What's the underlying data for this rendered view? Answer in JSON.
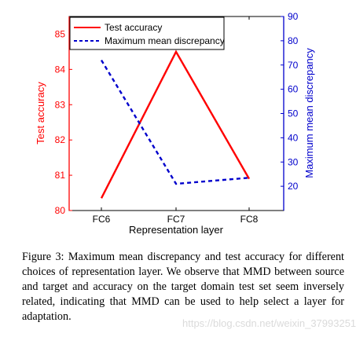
{
  "chart_data": {
    "type": "line",
    "categories": [
      "FC6",
      "FC7",
      "FC8"
    ],
    "xlabel": "Representation layer",
    "y_left": {
      "label": "Test accuracy",
      "range": [
        80,
        85.5
      ],
      "ticks": [
        80,
        81,
        82,
        83,
        84,
        85
      ],
      "color": "#ff0000"
    },
    "y_right": {
      "label": "Maximum mean discrepancy",
      "range": [
        10,
        90
      ],
      "ticks": [
        20,
        30,
        40,
        50,
        60,
        70,
        80,
        90
      ],
      "color": "#0000cc"
    },
    "series": [
      {
        "name": "Test accuracy",
        "axis": "left",
        "style": "solid",
        "color": "#ff0000",
        "values": [
          80.35,
          84.5,
          80.9
        ]
      },
      {
        "name": "Maximum mean discrepancy",
        "axis": "right",
        "style": "dashed",
        "color": "#0000cc",
        "values": [
          72,
          21,
          23.5
        ]
      }
    ],
    "legend": {
      "position": "top-left"
    },
    "grid": false
  },
  "caption": "Figure 3: Maximum mean discrepancy and test accuracy for different choices of representation layer. We observe that MMD between source and target and accuracy on the target domain test set seem inversely related, indicating that MMD can be used to help select a layer for adaptation.",
  "watermark": "https://blog.csdn.net/weixin_37993251"
}
